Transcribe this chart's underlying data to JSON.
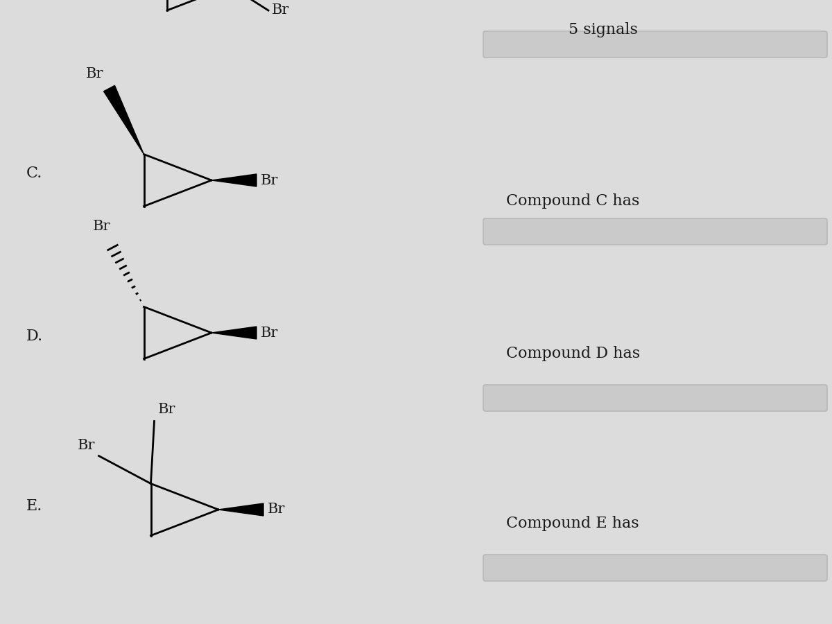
{
  "bg_color": "#dcdcdc",
  "title_text": "5 signals",
  "compound_C_label": "C.",
  "compound_D_label": "D.",
  "compound_E_label": "E.",
  "compound_C_has": "Compound C has",
  "compound_D_has": "Compound D has",
  "compound_E_has": "Compound E has",
  "text_color": "#1a1a1a",
  "input_box_color": "#cacaca",
  "input_box_edge_color": "#b8b8b8"
}
